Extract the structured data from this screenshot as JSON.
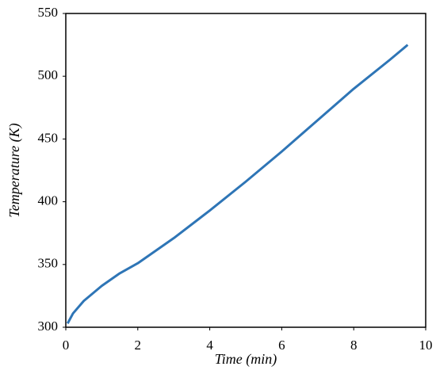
{
  "chart_data": {
    "type": "line",
    "x_label": "Time (min)",
    "y_label": "Temperature (K)",
    "x": [
      0.05,
      0.2,
      0.5,
      1,
      1.5,
      2,
      3,
      4,
      5,
      6,
      7,
      8,
      9,
      9.5
    ],
    "series": [
      {
        "name": "Temperature",
        "color": "#2e75b6",
        "values": [
          303,
          311,
          321,
          333,
          343,
          351,
          371,
          393,
          416,
          440,
          465,
          490,
          513,
          525
        ]
      }
    ],
    "xlim": [
      0,
      10
    ],
    "xticks": [
      0,
      2,
      4,
      6,
      8,
      10
    ],
    "ylim": [
      300,
      550
    ],
    "yticks": [
      300,
      350,
      400,
      450,
      500,
      550
    ],
    "grid": false
  }
}
